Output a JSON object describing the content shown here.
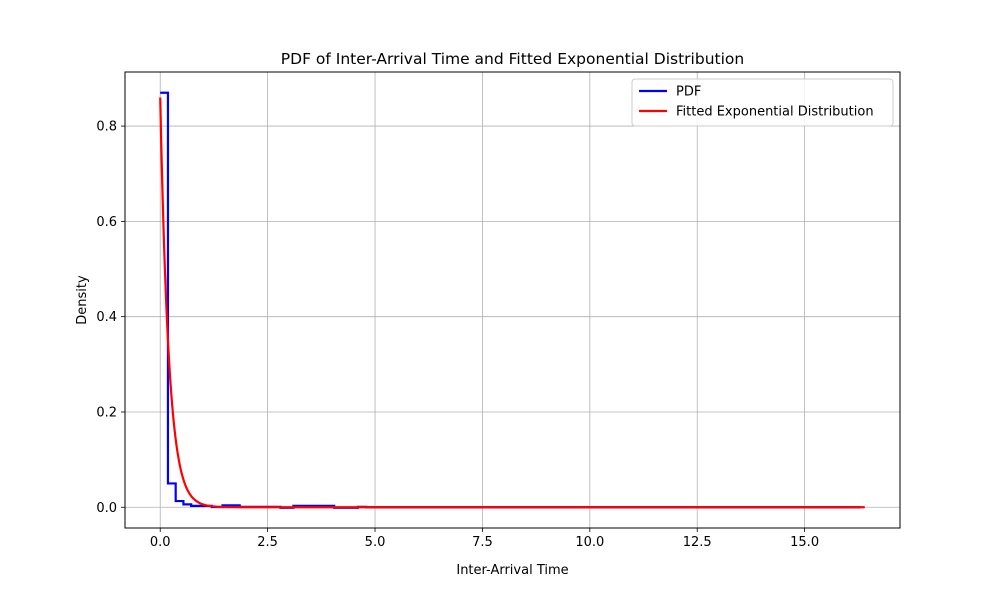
{
  "chart_data": {
    "type": "line",
    "title": "PDF of Inter-Arrival Time and Fitted Exponential Distribution",
    "xlabel": "Inter-Arrival Time",
    "ylabel": "Density",
    "xlim": [
      -0.82,
      17.22
    ],
    "ylim": [
      -0.0435,
      0.9135
    ],
    "xticks": [
      0.0,
      2.5,
      5.0,
      7.5,
      10.0,
      12.5,
      15.0
    ],
    "xtick_labels": [
      "0.0",
      "2.5",
      "5.0",
      "7.5",
      "10.0",
      "12.5",
      "15.0"
    ],
    "yticks": [
      0.0,
      0.2,
      0.4,
      0.6,
      0.8
    ],
    "ytick_labels": [
      "0.0",
      "0.2",
      "0.4",
      "0.6",
      "0.8"
    ],
    "grid": true,
    "legend_position": "top-right",
    "series": [
      {
        "name": "PDF",
        "color": "#0000ff",
        "style": "step",
        "x": [
          0.0,
          0.18,
          0.18,
          0.36,
          0.36,
          0.54,
          0.54,
          0.72,
          0.72,
          1.2,
          1.2,
          1.45,
          1.45,
          1.85,
          1.85,
          2.8,
          2.8,
          3.1,
          3.1,
          4.05,
          4.05,
          4.6,
          4.6,
          4.8,
          4.8,
          16.3
        ],
        "values": [
          0.87,
          0.87,
          0.05,
          0.05,
          0.013,
          0.013,
          0.006,
          0.006,
          0.003,
          0.003,
          0.0005,
          0.0005,
          0.004,
          0.004,
          0.001,
          0.001,
          -0.001,
          -0.001,
          0.003,
          0.003,
          -0.001,
          -0.001,
          0.001,
          0.001,
          0.0,
          0.0
        ]
      },
      {
        "name": "Fitted Exponential Distribution",
        "color": "#ff0000",
        "style": "exponential",
        "lambda": 0.86,
        "x_range": [
          0.0,
          16.4
        ]
      }
    ]
  }
}
